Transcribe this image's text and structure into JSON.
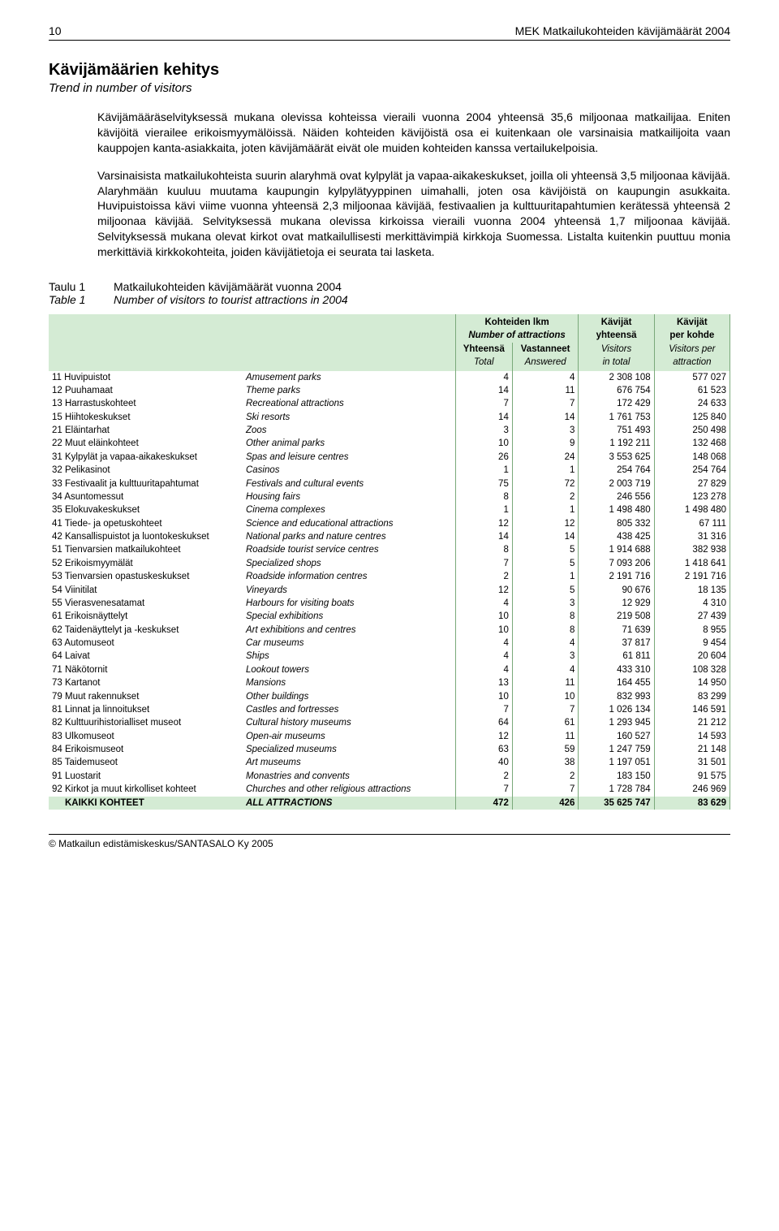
{
  "header": {
    "pageNum": "10",
    "reportTitle": "MEK Matkailukohteiden kävijämäärät 2004"
  },
  "headings": {
    "main": "Kävijämäärien kehitys",
    "sub": "Trend in number of visitors"
  },
  "paragraphs": {
    "p1": "Kävijämääräselvityksessä mukana olevissa kohteissa vieraili vuonna 2004 yhteensä 35,6 miljoonaa matkailijaa. Eniten kävijöitä vierailee erikoismyymälöissä. Näiden kohteiden kävijöistä osa ei kuitenkaan ole varsinaisia matkailijoita vaan kauppojen kanta-asiakkaita, joten kävijämäärät eivät ole muiden kohteiden kanssa vertailukelpoisia.",
    "p2": "Varsinaisista matkailukohteista suurin alaryhmä ovat kylpylät ja vapaa-aikakeskukset, joilla oli yhteensä 3,5 miljoonaa kävijää. Alaryhmään kuuluu muutama kaupungin kylpylätyyppinen uimahalli, joten osa kävijöistä on kaupungin asukkaita. Huvipuistoissa kävi viime vuonna yhteensä 2,3 miljoonaa kävijää, festivaalien ja kulttuuritapahtumien kerätessä yhteensä 2 miljoonaa kävijää. Selvityksessä mukana olevissa kirkoissa vieraili vuonna 2004 yhteensä 1,7 miljoonaa kävijää. Selvityksessä mukana olevat kirkot ovat matkailullisesti merkittävimpiä kirkkoja Suomessa. Listalta kuitenkin puuttuu monia merkittäviä kirkkokohteita, joiden kävijätietoja ei seurata tai lasketa."
  },
  "tableTitles": {
    "t1a": "Taulu 1",
    "t1b": "Matkailukohteiden kävijämäärät vuonna 2004",
    "t2a": "Table 1",
    "t2b": "Number of visitors to tourist attractions in 2004"
  },
  "tableHeader": {
    "c1a": "Kohteiden lkm",
    "c1b": "Number of attractions",
    "c2a": "Yhteensä",
    "c2b": "Total",
    "c3a": "Vastanneet",
    "c3b": "Answered",
    "c4a": "Kävijät",
    "c4b": "yhteensä",
    "c4c": "Visitors",
    "c4d": "in total",
    "c5a": "Kävijät",
    "c5b": "per kohde",
    "c5c": "Visitors per",
    "c5d": "attraction"
  },
  "rows": [
    {
      "code": "11",
      "fi": "Huvipuistot",
      "en": "Amusement parks",
      "n1": "4",
      "n2": "4",
      "v": "2 308 108",
      "pk": "577 027"
    },
    {
      "code": "12",
      "fi": "Puuhamaat",
      "en": "Theme parks",
      "n1": "14",
      "n2": "11",
      "v": "676 754",
      "pk": "61 523"
    },
    {
      "code": "13",
      "fi": "Harrastuskohteet",
      "en": "Recreational attractions",
      "n1": "7",
      "n2": "7",
      "v": "172 429",
      "pk": "24 633"
    },
    {
      "code": "15",
      "fi": "Hiihtokeskukset",
      "en": "Ski resorts",
      "n1": "14",
      "n2": "14",
      "v": "1 761 753",
      "pk": "125 840"
    },
    {
      "code": "21",
      "fi": "Eläintarhat",
      "en": "Zoos",
      "n1": "3",
      "n2": "3",
      "v": "751 493",
      "pk": "250 498"
    },
    {
      "code": "22",
      "fi": "Muut eläinkohteet",
      "en": "Other animal parks",
      "n1": "10",
      "n2": "9",
      "v": "1 192 211",
      "pk": "132 468"
    },
    {
      "code": "31",
      "fi": "Kylpylät ja vapaa-aikakeskukset",
      "en": "Spas and leisure centres",
      "n1": "26",
      "n2": "24",
      "v": "3 553 625",
      "pk": "148 068"
    },
    {
      "code": "32",
      "fi": "Pelikasinot",
      "en": "Casinos",
      "n1": "1",
      "n2": "1",
      "v": "254 764",
      "pk": "254 764"
    },
    {
      "code": "33",
      "fi": "Festivaalit ja kulttuuritapahtumat",
      "en": "Festivals and cultural events",
      "n1": "75",
      "n2": "72",
      "v": "2 003 719",
      "pk": "27 829"
    },
    {
      "code": "34",
      "fi": "Asuntomessut",
      "en": "Housing fairs",
      "n1": "8",
      "n2": "2",
      "v": "246 556",
      "pk": "123 278"
    },
    {
      "code": "35",
      "fi": "Elokuvakeskukset",
      "en": "Cinema complexes",
      "n1": "1",
      "n2": "1",
      "v": "1 498 480",
      "pk": "1 498 480"
    },
    {
      "code": "41",
      "fi": "Tiede- ja opetuskohteet",
      "en": "Science and educational attractions",
      "n1": "12",
      "n2": "12",
      "v": "805 332",
      "pk": "67 111"
    },
    {
      "code": "42",
      "fi": "Kansallispuistot ja luontokeskukset",
      "en": "National parks and nature centres",
      "n1": "14",
      "n2": "14",
      "v": "438 425",
      "pk": "31 316"
    },
    {
      "code": "51",
      "fi": "Tienvarsien matkailukohteet",
      "en": "Roadside tourist service centres",
      "n1": "8",
      "n2": "5",
      "v": "1 914 688",
      "pk": "382 938"
    },
    {
      "code": "52",
      "fi": "Erikoismyymälät",
      "en": "Specialized shops",
      "n1": "7",
      "n2": "5",
      "v": "7 093 206",
      "pk": "1 418 641"
    },
    {
      "code": "53",
      "fi": "Tienvarsien opastuskeskukset",
      "en": "Roadside information centres",
      "n1": "2",
      "n2": "1",
      "v": "2 191 716",
      "pk": "2 191 716"
    },
    {
      "code": "54",
      "fi": "Viinitilat",
      "en": "Vineyards",
      "n1": "12",
      "n2": "5",
      "v": "90 676",
      "pk": "18 135"
    },
    {
      "code": "55",
      "fi": "Vierasvenesatamat",
      "en": "Harbours for visiting boats",
      "n1": "4",
      "n2": "3",
      "v": "12 929",
      "pk": "4 310"
    },
    {
      "code": "61",
      "fi": "Erikoisnäyttelyt",
      "en": "Special exhibitions",
      "n1": "10",
      "n2": "8",
      "v": "219 508",
      "pk": "27 439"
    },
    {
      "code": "62",
      "fi": "Taidenäyttelyt ja -keskukset",
      "en": "Art exhibitions and centres",
      "n1": "10",
      "n2": "8",
      "v": "71 639",
      "pk": "8 955"
    },
    {
      "code": "63",
      "fi": "Automuseot",
      "en": "Car museums",
      "n1": "4",
      "n2": "4",
      "v": "37 817",
      "pk": "9 454"
    },
    {
      "code": "64",
      "fi": "Laivat",
      "en": "Ships",
      "n1": "4",
      "n2": "3",
      "v": "61 811",
      "pk": "20 604"
    },
    {
      "code": "71",
      "fi": "Näkötornit",
      "en": "Lookout towers",
      "n1": "4",
      "n2": "4",
      "v": "433 310",
      "pk": "108 328"
    },
    {
      "code": "73",
      "fi": "Kartanot",
      "en": "Mansions",
      "n1": "13",
      "n2": "11",
      "v": "164 455",
      "pk": "14 950"
    },
    {
      "code": "79",
      "fi": "Muut rakennukset",
      "en": "Other buildings",
      "n1": "10",
      "n2": "10",
      "v": "832 993",
      "pk": "83 299"
    },
    {
      "code": "81",
      "fi": "Linnat ja linnoitukset",
      "en": "Castles and fortresses",
      "n1": "7",
      "n2": "7",
      "v": "1 026 134",
      "pk": "146 591"
    },
    {
      "code": "82",
      "fi": "Kulttuurihistorialliset museot",
      "en": "Cultural history museums",
      "n1": "64",
      "n2": "61",
      "v": "1 293 945",
      "pk": "21 212"
    },
    {
      "code": "83",
      "fi": "Ulkomuseot",
      "en": "Open-air museums",
      "n1": "12",
      "n2": "11",
      "v": "160 527",
      "pk": "14 593"
    },
    {
      "code": "84",
      "fi": "Erikoismuseot",
      "en": "Specialized museums",
      "n1": "63",
      "n2": "59",
      "v": "1 247 759",
      "pk": "21 148"
    },
    {
      "code": "85",
      "fi": "Taidemuseot",
      "en": "Art museums",
      "n1": "40",
      "n2": "38",
      "v": "1 197 051",
      "pk": "31 501"
    },
    {
      "code": "91",
      "fi": "Luostarit",
      "en": "Monastries and convents",
      "n1": "2",
      "n2": "2",
      "v": "183 150",
      "pk": "91 575"
    },
    {
      "code": "92",
      "fi": "Kirkot ja muut kirkolliset kohteet",
      "en": "Churches and other religious attractions",
      "n1": "7",
      "n2": "7",
      "v": "1 728 784",
      "pk": "246 969"
    }
  ],
  "totalRow": {
    "fi": "KAIKKI KOHTEET",
    "en": "ALL ATTRACTIONS",
    "n1": "472",
    "n2": "426",
    "v": "35 625 747",
    "pk": "83 629"
  },
  "footer": "© Matkailun edistämiskeskus/SANTASALO Ky 2005"
}
